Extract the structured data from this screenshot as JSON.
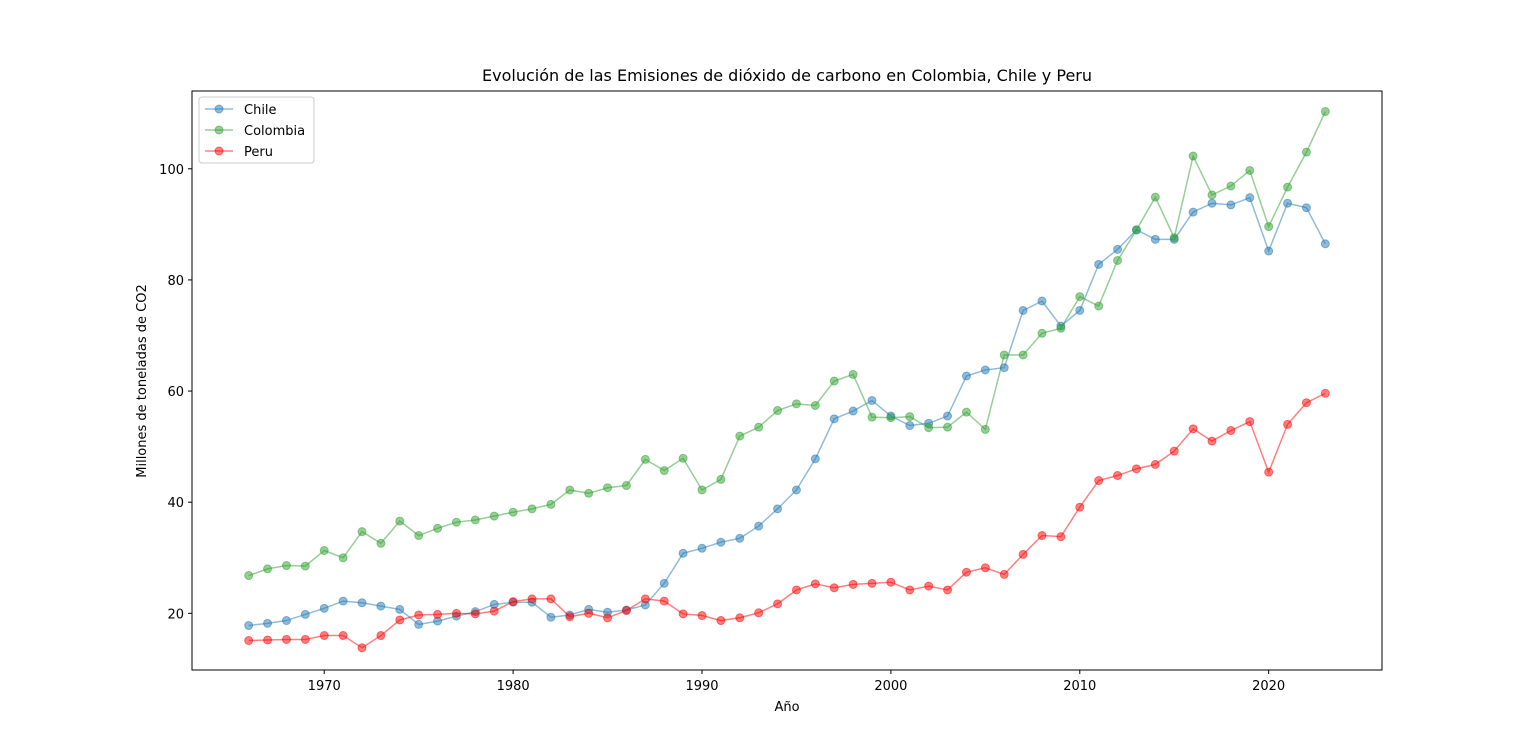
{
  "chart_data": {
    "type": "line",
    "title": "Evolución de las Emisiones de dióxido de carbono en Colombia, Chile y Peru",
    "xlabel": "Año",
    "ylabel": "Millones de toneladas de CO2",
    "xlim": [
      1963,
      2026
    ],
    "ylim": [
      9.8,
      114
    ],
    "xticks": [
      1970,
      1980,
      1990,
      2000,
      2010,
      2020
    ],
    "xtick_labels": [
      "1970",
      "1980",
      "1990",
      "2000",
      "2010",
      "2020"
    ],
    "yticks": [
      20,
      40,
      60,
      80,
      100
    ],
    "ytick_labels": [
      "20",
      "40",
      "60",
      "80",
      "100"
    ],
    "grid": false,
    "legend": "top-left",
    "x": [
      1966,
      1967,
      1968,
      1969,
      1970,
      1971,
      1972,
      1973,
      1974,
      1975,
      1976,
      1977,
      1978,
      1979,
      1980,
      1981,
      1982,
      1983,
      1984,
      1985,
      1986,
      1987,
      1988,
      1989,
      1990,
      1991,
      1992,
      1993,
      1994,
      1995,
      1996,
      1997,
      1998,
      1999,
      2000,
      2001,
      2002,
      2003,
      2004,
      2005,
      2006,
      2007,
      2008,
      2009,
      2010,
      2011,
      2012,
      2013,
      2014,
      2015,
      2016,
      2017,
      2018,
      2019,
      2020,
      2021,
      2022,
      2023
    ],
    "series": [
      {
        "name": "Chile",
        "color": "#1f77b4",
        "values": [
          17.8,
          18.2,
          18.7,
          19.8,
          20.9,
          22.2,
          21.9,
          21.3,
          20.7,
          18.0,
          18.6,
          19.5,
          20.3,
          21.6,
          22.0,
          22.0,
          19.3,
          19.7,
          20.7,
          20.2,
          20.6,
          21.5,
          25.4,
          30.8,
          31.7,
          32.8,
          33.5,
          35.7,
          38.8,
          42.2,
          47.8,
          55.0,
          56.4,
          58.3,
          55.5,
          53.8,
          54.2,
          55.5,
          62.7,
          63.8,
          64.2,
          74.5,
          76.2,
          71.7,
          74.5,
          82.8,
          85.5,
          89.0,
          87.3,
          87.3,
          92.2,
          93.8,
          93.5,
          94.8,
          85.2,
          93.8,
          93.0,
          86.5
        ]
      },
      {
        "name": "Colombia",
        "color": "#2ca02c",
        "values": [
          26.8,
          28.0,
          28.6,
          28.5,
          31.3,
          30.0,
          34.7,
          32.6,
          36.6,
          34.0,
          35.3,
          36.4,
          36.8,
          37.5,
          38.2,
          38.8,
          39.6,
          42.2,
          41.6,
          42.6,
          43.0,
          47.7,
          45.7,
          47.9,
          42.2,
          44.1,
          51.9,
          53.5,
          56.5,
          57.7,
          57.4,
          61.8,
          63.0,
          55.3,
          55.2,
          55.4,
          53.4,
          53.5,
          56.2,
          53.1,
          66.5,
          66.5,
          70.4,
          71.3,
          77.0,
          75.3,
          83.5,
          89.0,
          94.9,
          87.6,
          102.3,
          95.3,
          96.9,
          99.7,
          89.6,
          96.7,
          103.0,
          110.3
        ]
      },
      {
        "name": "Peru",
        "color": "#ff0000",
        "values": [
          15.1,
          15.2,
          15.3,
          15.3,
          16.0,
          16.0,
          13.8,
          16.0,
          18.8,
          19.7,
          19.8,
          20.0,
          19.9,
          20.4,
          22.1,
          22.6,
          22.6,
          19.4,
          20.0,
          19.2,
          20.5,
          22.6,
          22.2,
          19.9,
          19.6,
          18.7,
          19.2,
          20.1,
          21.7,
          24.2,
          25.3,
          24.6,
          25.2,
          25.4,
          25.6,
          24.2,
          24.9,
          24.2,
          27.4,
          28.2,
          27.0,
          30.6,
          34.0,
          33.8,
          39.1,
          43.9,
          44.8,
          46.0,
          46.8,
          49.2,
          53.2,
          51.0,
          52.9,
          54.5,
          45.4,
          54.0,
          57.9,
          59.6
        ]
      }
    ]
  }
}
